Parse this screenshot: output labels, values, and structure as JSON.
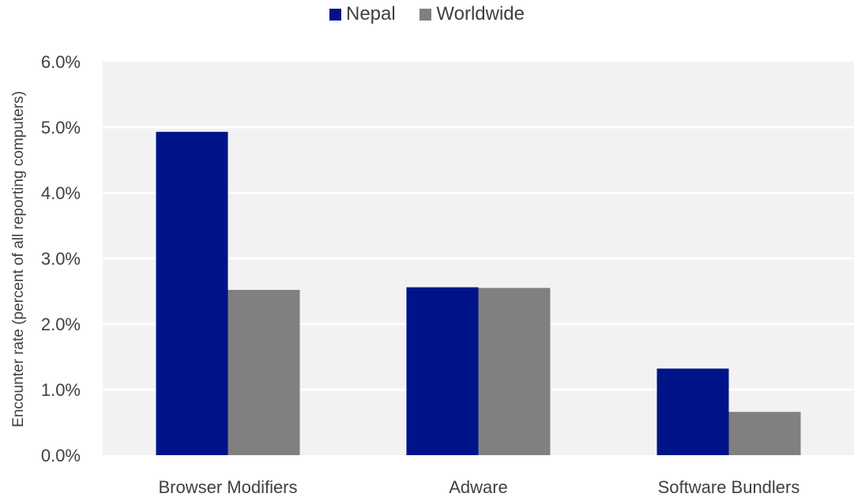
{
  "chart_data": {
    "type": "bar",
    "categories": [
      "Browser Modifiers",
      "Adware",
      "Software Bundlers"
    ],
    "series": [
      {
        "name": "Nepal",
        "values": [
          4.93,
          2.56,
          1.32
        ],
        "color": "#001489"
      },
      {
        "name": "Worldwide",
        "values": [
          2.52,
          2.55,
          0.66
        ],
        "color": "#808080"
      }
    ],
    "ylabel": "Encounter rate (percent of all reporting computers)",
    "ylim": [
      0,
      6
    ],
    "yticks": [
      "0.0%",
      "1.0%",
      "2.0%",
      "3.0%",
      "4.0%",
      "5.0%",
      "6.0%"
    ],
    "grid": true,
    "legend_position": "top-center",
    "plot_background": "#f2f2f2",
    "gridline_color": "#ffffff"
  }
}
